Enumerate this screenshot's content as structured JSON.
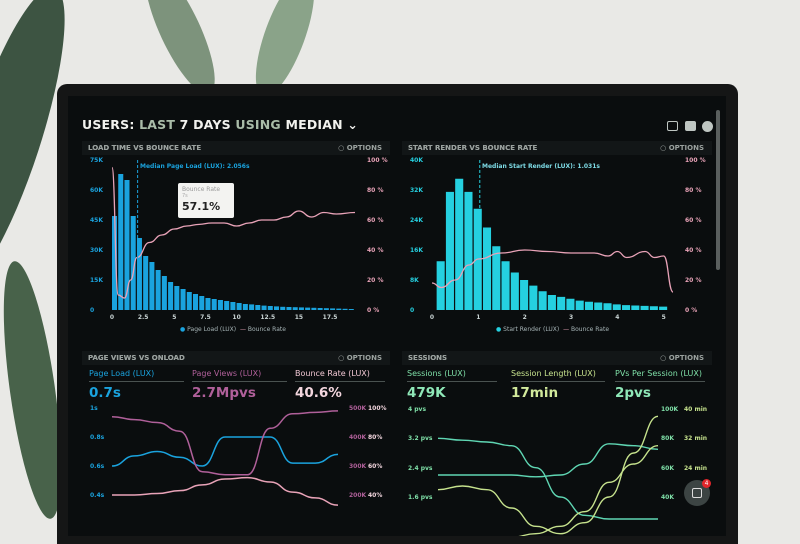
{
  "header": {
    "title_parts": [
      "USERS:",
      "LAST",
      "7 DAYS",
      "USING",
      "MEDIAN"
    ],
    "dropdown_icon": "chevron-down-icon",
    "icons": [
      "monitor-icon",
      "share-icon",
      "help-icon"
    ]
  },
  "colors": {
    "blue": "#1aa3de",
    "cyan": "#25d0e0",
    "pink": "#e9a3b8",
    "purple": "#b0609a",
    "teal": "#5fd6b3",
    "yellow": "#c6e28d",
    "green_text": "#7fe0a8"
  },
  "panels": {
    "load": {
      "title": "LOAD TIME VS BOUNCE RATE",
      "options": "OPTIONS",
      "median": "Median Page Load (LUX): 2.056s",
      "tooltip": {
        "label": "Bounce Rate",
        "sub": "7s",
        "value": "57.1%"
      },
      "legend": [
        "Page Load (LUX)",
        "Bounce Rate"
      ]
    },
    "render": {
      "title": "START RENDER VS BOUNCE RATE",
      "options": "OPTIONS",
      "median": "Median Start Render (LUX): 1.031s",
      "legend": [
        "Start Render (LUX)",
        "Bounce Rate"
      ]
    },
    "pageviews": {
      "title": "PAGE VIEWS VS ONLOAD",
      "options": "OPTIONS",
      "metrics": [
        {
          "label": "Page Load (LUX)",
          "value": "0.7s"
        },
        {
          "label": "Page Views (LUX)",
          "value": "2.7Mpvs"
        },
        {
          "label": "Bounce Rate (LUX)",
          "value": "40.6%"
        }
      ]
    },
    "sessions": {
      "title": "SESSIONS",
      "options": "OPTIONS",
      "metrics": [
        {
          "label": "Sessions (LUX)",
          "value": "479K"
        },
        {
          "label": "Session Length (LUX)",
          "value": "17min"
        },
        {
          "label": "PVs Per Session (LUX)",
          "value": "2pvs"
        }
      ]
    }
  },
  "chat": {
    "badge": "4"
  },
  "chart_data": [
    {
      "type": "bar",
      "title": "LOAD TIME VS BOUNCE RATE",
      "xlim": [
        0,
        19.5
      ],
      "ylim": [
        0,
        75000
      ],
      "y2lim": [
        0,
        100
      ],
      "x_ticks": [
        "0",
        "2.5",
        "5",
        "7.5",
        "10",
        "12.5",
        "15",
        "17.5"
      ],
      "y_ticks": [
        "0",
        "15K",
        "30K",
        "45K",
        "60K",
        "75K"
      ],
      "y2_ticks": [
        "0 %",
        "20 %",
        "40 %",
        "60 %",
        "80 %",
        "100 %"
      ],
      "bin_width": 0.5,
      "series": [
        {
          "name": "Page Load (LUX)",
          "values": [
            47000,
            68000,
            65000,
            47000,
            36000,
            27000,
            24000,
            20000,
            17000,
            14000,
            12000,
            10500,
            9000,
            8000,
            7000,
            6000,
            5500,
            5000,
            4500,
            4000,
            3500,
            3000,
            2800,
            2500,
            2200,
            2000,
            1800,
            1600,
            1500,
            1400,
            1300,
            1200,
            1100,
            1000,
            900,
            800,
            700,
            600,
            500
          ]
        },
        {
          "name": "Bounce Rate",
          "x": [
            0,
            0.5,
            1,
            1.5,
            2,
            3,
            4,
            5,
            6,
            7,
            8,
            9,
            10,
            11,
            12,
            13,
            14,
            15,
            16,
            17,
            18,
            19.5
          ],
          "y": [
            95,
            10,
            8,
            20,
            35,
            45,
            50,
            54,
            56,
            57.1,
            58,
            58,
            56,
            58,
            60,
            60,
            62,
            66,
            62,
            65,
            64,
            65
          ]
        }
      ],
      "median": 2.056
    },
    {
      "type": "bar",
      "title": "START RENDER VS BOUNCE RATE",
      "xlim": [
        0,
        5.2
      ],
      "ylim": [
        0,
        40000
      ],
      "y2lim": [
        0,
        100
      ],
      "x_ticks": [
        "0",
        "1",
        "2",
        "3",
        "4",
        "5"
      ],
      "y_ticks": [
        "0",
        "8K",
        "16K",
        "24K",
        "32K",
        "40K"
      ],
      "y2_ticks": [
        "0 %",
        "20 %",
        "40 %",
        "60 %",
        "80 %",
        "100 %"
      ],
      "bin_width": 0.2,
      "series": [
        {
          "name": "Start Render (LUX)",
          "values": [
            13000,
            31500,
            35000,
            31500,
            27000,
            22000,
            17000,
            13000,
            10000,
            8000,
            6500,
            5000,
            4000,
            3500,
            3000,
            2500,
            2200,
            2000,
            1800,
            1500,
            1300,
            1200,
            1100,
            1000,
            900
          ]
        },
        {
          "name": "Bounce Rate",
          "x": [
            0,
            0.2,
            0.5,
            0.8,
            1,
            1.5,
            2,
            2.5,
            3,
            3.5,
            3.8,
            4,
            4.2,
            4.6,
            4.8,
            5,
            5.2
          ],
          "y": [
            18,
            15,
            20,
            30,
            34,
            38,
            40,
            39,
            38,
            38,
            36,
            39,
            35,
            39,
            35,
            36,
            12
          ]
        }
      ],
      "median": 1.031
    },
    {
      "type": "line",
      "title": "PAGE VIEWS VS ONLOAD",
      "y_ticks": [
        "1s",
        "0.8s",
        "0.6s",
        "0.4s"
      ],
      "y2_ticks": [
        "500K",
        "400K",
        "300K",
        "200K"
      ],
      "y3_ticks": [
        "100%",
        "80%",
        "60%",
        "40%"
      ],
      "series": [
        {
          "name": "Page Load (LUX)",
          "axis": "s",
          "values": [
            0.6,
            0.67,
            0.7,
            0.66,
            0.6,
            0.8,
            0.8,
            0.8,
            0.62,
            0.62,
            0.68
          ]
        },
        {
          "name": "Page Views (LUX)",
          "axis": "K",
          "values": [
            470,
            460,
            450,
            420,
            280,
            270,
            270,
            430,
            480,
            485,
            490
          ]
        },
        {
          "name": "Bounce Rate (LUX)",
          "axis": "%",
          "values": [
            40,
            40,
            41,
            43,
            47,
            51,
            52,
            49,
            42,
            38,
            33
          ]
        }
      ]
    },
    {
      "type": "line",
      "title": "SESSIONS",
      "y_ticks": [
        "4 pvs",
        "3.2 pvs",
        "2.4 pvs",
        "1.6 pvs"
      ],
      "y2_ticks": [
        "100K",
        "80K",
        "60K",
        "40K"
      ],
      "y3_ticks": [
        "40 min",
        "32 min",
        "24 min"
      ],
      "series": [
        {
          "name": "PVs Per Session (LUX)",
          "values": [
            3.2,
            3.15,
            3.1,
            3.0,
            2.4,
            1.6,
            1.1,
            1.0,
            1.0,
            1.0
          ]
        },
        {
          "name": "Sessions (LUX)",
          "values": [
            2.2,
            2.2,
            2.2,
            2.2,
            2.15,
            2.2,
            2.5,
            3.05,
            3.0,
            2.9
          ]
        },
        {
          "name": "Session Length (LUX)",
          "values": [
            1.8,
            1.9,
            1.8,
            1.3,
            0.8,
            0.6,
            0.9,
            1.6,
            2.8,
            3.8
          ]
        },
        {
          "name": "",
          "values": [
            0.5,
            0.5,
            0.5,
            0.5,
            0.6,
            0.8,
            1.2,
            2.0,
            2.5,
            3.0
          ]
        }
      ]
    }
  ]
}
